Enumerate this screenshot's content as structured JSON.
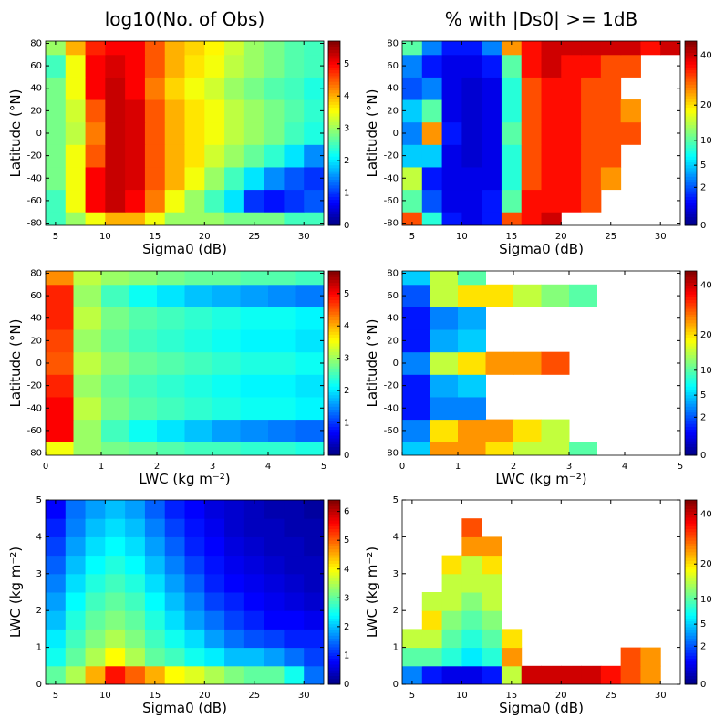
{
  "chart_data": [
    {
      "type": "heatmap",
      "title": "log10(No. of Obs)",
      "xlabel": "Sigma0 (dB)",
      "ylabel": "Latitude (°N)",
      "x": [
        5,
        7,
        9,
        11,
        13,
        15,
        17,
        19,
        21,
        23,
        25,
        27,
        29,
        31
      ],
      "y": [
        -80,
        -60,
        -40,
        -20,
        0,
        20,
        40,
        60,
        80
      ],
      "xlim": [
        4,
        32
      ],
      "ylim": [
        -82,
        82
      ],
      "xticks": [
        5,
        10,
        15,
        20,
        25,
        30
      ],
      "yticks": [
        -80,
        -60,
        -40,
        -20,
        0,
        20,
        40,
        60,
        80
      ],
      "clim": [
        0,
        5.7
      ],
      "cticks": [
        0,
        1,
        2,
        3,
        4,
        5
      ],
      "colormap": "jet",
      "z": [
        [
          2.5,
          3,
          3.5,
          4,
          4,
          3.5,
          3,
          3,
          3,
          2.8,
          2.8,
          2.8,
          2.5,
          2.5
        ],
        [
          2.5,
          3.5,
          5,
          5.3,
          5,
          4.3,
          3.5,
          3,
          2.5,
          2,
          1,
          0.8,
          1,
          1.2
        ],
        [
          2.8,
          3.5,
          5,
          5.3,
          5.2,
          4.5,
          4,
          3.5,
          3,
          2.5,
          2,
          1.5,
          1.2,
          1
        ],
        [
          2.8,
          3.5,
          4.5,
          5.3,
          5.2,
          4.5,
          4,
          3.7,
          3.3,
          3,
          2.7,
          2.4,
          2,
          1.5
        ],
        [
          2.8,
          3.2,
          4.3,
          5.3,
          5.2,
          4.5,
          4,
          3.7,
          3.5,
          3.2,
          3,
          2.8,
          2.5,
          2.3
        ],
        [
          2.8,
          3.3,
          4.5,
          5.3,
          5.2,
          4.5,
          4,
          3.7,
          3.5,
          3.2,
          3,
          2.8,
          2.6,
          2.4
        ],
        [
          2.8,
          3.5,
          5,
          5.3,
          5,
          4.3,
          3.8,
          3.5,
          3.3,
          3,
          2.8,
          2.6,
          2.5,
          2.3
        ],
        [
          2.5,
          3.5,
          5,
          5.2,
          5,
          4.5,
          4,
          3.7,
          3.5,
          3.2,
          3,
          2.8,
          2.6,
          2.5
        ],
        [
          3,
          4,
          4.8,
          5,
          5,
          4.5,
          4,
          3.8,
          3.6,
          3.3,
          3,
          2.8,
          2.6,
          2.5
        ]
      ]
    },
    {
      "type": "heatmap",
      "title": "% with |Ds0| >= 1dB",
      "xlabel": "Sigma0 (dB)",
      "ylabel": "Latitude (°N)",
      "x": [
        5,
        7,
        9,
        11,
        13,
        15,
        17,
        19,
        21,
        23,
        25,
        27,
        29,
        31
      ],
      "y": [
        -80,
        -60,
        -40,
        -20,
        0,
        20,
        40,
        60,
        80
      ],
      "xlim": [
        4,
        32
      ],
      "ylim": [
        -82,
        82
      ],
      "xticks": [
        5,
        10,
        15,
        20,
        25,
        30
      ],
      "yticks": [
        -80,
        -60,
        -40,
        -20,
        0,
        20,
        40,
        60,
        80
      ],
      "clim": [
        0,
        47
      ],
      "cscale": "sqrt",
      "cticks": [
        0,
        2,
        5,
        10,
        20,
        40
      ],
      "colormap": "jet",
      "z": [
        [
          30,
          8,
          1,
          0.5,
          1,
          30,
          35,
          40,
          null,
          null,
          null,
          null,
          null,
          null
        ],
        [
          10,
          2,
          0.5,
          0.5,
          1,
          10,
          35,
          35,
          35,
          30,
          null,
          null,
          null,
          null
        ],
        [
          15,
          1,
          0.5,
          0.5,
          0.5,
          8,
          30,
          35,
          35,
          30,
          25,
          null,
          null,
          null
        ],
        [
          5,
          5,
          0.5,
          0.3,
          0.5,
          8,
          30,
          35,
          35,
          30,
          30,
          null,
          null,
          null
        ],
        [
          3,
          25,
          1,
          0.3,
          0.5,
          10,
          30,
          35,
          35,
          30,
          30,
          30,
          null,
          null
        ],
        [
          5,
          10,
          0.5,
          0.3,
          0.5,
          8,
          30,
          35,
          35,
          30,
          30,
          25,
          null,
          null
        ],
        [
          2,
          3,
          0.5,
          0.3,
          0.5,
          8,
          30,
          35,
          35,
          30,
          30,
          null,
          null,
          null
        ],
        [
          3,
          1,
          0.5,
          0.5,
          1,
          10,
          35,
          40,
          35,
          35,
          30,
          30,
          null,
          null
        ],
        [
          10,
          3,
          1,
          1,
          3,
          25,
          35,
          40,
          40,
          40,
          40,
          40,
          35,
          40
        ]
      ]
    },
    {
      "type": "heatmap",
      "xlabel": "LWC (kg m⁻²)",
      "ylabel": "Latitude (°N)",
      "x": [
        0.25,
        0.75,
        1.25,
        1.75,
        2.25,
        2.75,
        3.25,
        3.75,
        4.25,
        4.75
      ],
      "y": [
        -80,
        -60,
        -40,
        -20,
        0,
        20,
        40,
        60,
        80
      ],
      "xlim": [
        0,
        5
      ],
      "ylim": [
        -82,
        82
      ],
      "xticks": [
        0,
        1,
        2,
        3,
        4,
        5
      ],
      "yticks": [
        -80,
        -60,
        -40,
        -20,
        0,
        20,
        40,
        60,
        80
      ],
      "clim": [
        0,
        5.7
      ],
      "cticks": [
        0,
        1,
        2,
        3,
        4,
        5
      ],
      "colormap": "jet",
      "z": [
        [
          3.5,
          3,
          2.8,
          2.7,
          2.6,
          2.5,
          2.5,
          2.4,
          2.4,
          2.3
        ],
        [
          5,
          3,
          2.5,
          2.2,
          2,
          1.8,
          1.6,
          1.5,
          1.4,
          1.3
        ],
        [
          5,
          3.2,
          2.8,
          2.6,
          2.5,
          2.4,
          2.3,
          2.2,
          2.2,
          2.1
        ],
        [
          4.8,
          3,
          2.7,
          2.5,
          2.4,
          2.3,
          2.2,
          2.1,
          2.1,
          2
        ],
        [
          4.5,
          3.2,
          2.9,
          2.7,
          2.6,
          2.5,
          2.4,
          2.3,
          2.3,
          2.2
        ],
        [
          4.6,
          3,
          2.7,
          2.5,
          2.4,
          2.3,
          2.2,
          2.1,
          2.1,
          2
        ],
        [
          4.8,
          3.2,
          2.8,
          2.6,
          2.5,
          2.4,
          2.3,
          2.2,
          2.2,
          2.1
        ],
        [
          4.8,
          3,
          2.5,
          2.2,
          2,
          1.8,
          1.7,
          1.6,
          1.5,
          1.4
        ],
        [
          4.2,
          3.2,
          3,
          2.9,
          2.8,
          2.7,
          2.7,
          2.6,
          2.6,
          2.5
        ]
      ]
    },
    {
      "type": "heatmap",
      "xlabel": "LWC (kg m⁻²)",
      "ylabel": "Latitude (°N)",
      "x": [
        0.25,
        0.75,
        1.25,
        1.75,
        2.25,
        2.75,
        3.25,
        3.75,
        4.25,
        4.75
      ],
      "y": [
        -80,
        -60,
        -40,
        -20,
        0,
        20,
        40,
        60,
        80
      ],
      "xlim": [
        0,
        5
      ],
      "ylim": [
        -82,
        82
      ],
      "xticks": [
        0,
        1,
        2,
        3,
        4,
        5
      ],
      "yticks": [
        -80,
        -60,
        -40,
        -20,
        0,
        20,
        40,
        60,
        80
      ],
      "clim": [
        0,
        47
      ],
      "cscale": "sqrt",
      "cticks": [
        0,
        2,
        5,
        10,
        20,
        40
      ],
      "colormap": "jet",
      "z": [
        [
          5,
          25,
          25,
          20,
          15,
          15,
          10,
          null,
          null,
          null
        ],
        [
          3,
          20,
          25,
          25,
          20,
          15,
          null,
          null,
          null,
          null
        ],
        [
          1,
          3,
          3,
          null,
          null,
          null,
          null,
          null,
          null,
          null
        ],
        [
          1,
          4,
          5,
          null,
          null,
          null,
          null,
          null,
          null,
          null
        ],
        [
          3,
          15,
          20,
          25,
          25,
          30,
          null,
          null,
          null,
          null
        ],
        [
          1,
          4,
          5,
          null,
          null,
          null,
          null,
          null,
          null,
          null
        ],
        [
          1,
          3,
          4,
          null,
          null,
          null,
          null,
          null,
          null,
          null
        ],
        [
          2,
          15,
          20,
          20,
          15,
          12,
          10,
          null,
          null,
          null
        ],
        [
          5,
          15,
          10,
          null,
          null,
          null,
          null,
          null,
          null,
          null
        ]
      ]
    },
    {
      "type": "heatmap",
      "xlabel": "Sigma0 (dB)",
      "ylabel": "LWC (kg m⁻²)",
      "x": [
        5,
        7,
        9,
        11,
        13,
        15,
        17,
        19,
        21,
        23,
        25,
        27,
        29,
        31
      ],
      "y": [
        0.25,
        0.75,
        1.25,
        1.75,
        2.25,
        2.75,
        3.25,
        3.75,
        4.25,
        4.75
      ],
      "xlim": [
        4,
        32
      ],
      "ylim": [
        0,
        5
      ],
      "xticks": [
        5,
        10,
        15,
        20,
        25,
        30
      ],
      "yticks": [
        0,
        1,
        2,
        3,
        4,
        5
      ],
      "clim": [
        0,
        6.4
      ],
      "cticks": [
        0,
        1,
        2,
        3,
        4,
        5,
        6
      ],
      "colormap": "jet",
      "z": [
        [
          3,
          3.5,
          4.5,
          5.5,
          5,
          4.5,
          4,
          3.8,
          3.5,
          3.2,
          3,
          3,
          2.5,
          1.5
        ],
        [
          2.5,
          3,
          3.5,
          4,
          3.5,
          3,
          2.8,
          2.5,
          2.3,
          2,
          2,
          1.8,
          1.5,
          1.2
        ],
        [
          2.3,
          2.8,
          3.2,
          3.5,
          3.2,
          2.8,
          2.5,
          2.2,
          1.8,
          1.5,
          1.3,
          1.2,
          1,
          1
        ],
        [
          2,
          2.6,
          3,
          3.2,
          3,
          2.6,
          2.2,
          1.8,
          1.5,
          1.2,
          1,
          0.8,
          0.8,
          0.7
        ],
        [
          1.8,
          2.4,
          2.8,
          3,
          2.8,
          2.4,
          2,
          1.6,
          1.2,
          1,
          0.8,
          0.7,
          0.6,
          0.5
        ],
        [
          1.6,
          2.2,
          2.6,
          2.8,
          2.6,
          2.2,
          1.8,
          1.4,
          1,
          0.8,
          0.7,
          0.6,
          0.5,
          0.4
        ],
        [
          1.4,
          2,
          2.4,
          2.6,
          2.4,
          2,
          1.6,
          1.2,
          0.9,
          0.7,
          0.6,
          0.5,
          0.4,
          0.4
        ],
        [
          1.2,
          1.8,
          2.2,
          2.4,
          2.2,
          1.8,
          1.4,
          1,
          0.8,
          0.6,
          0.5,
          0.4,
          0.4,
          0.3
        ],
        [
          1,
          1.6,
          2,
          2.2,
          2,
          1.6,
          1.2,
          0.9,
          0.7,
          0.5,
          0.4,
          0.4,
          0.3,
          0.3
        ],
        [
          0.8,
          1.5,
          1.8,
          2,
          1.8,
          1.4,
          1,
          0.8,
          0.6,
          0.5,
          0.4,
          0.3,
          0.3,
          0.2
        ]
      ]
    },
    {
      "type": "heatmap",
      "xlabel": "Sigma0 (dB)",
      "ylabel": "LWC (kg m⁻²)",
      "x": [
        5,
        7,
        9,
        11,
        13,
        15,
        17,
        19,
        21,
        23,
        25,
        27,
        29,
        31
      ],
      "y": [
        0.25,
        0.75,
        1.25,
        1.75,
        2.25,
        2.75,
        3.25,
        3.75,
        4.25,
        4.75
      ],
      "xlim": [
        4,
        32
      ],
      "ylim": [
        0,
        5
      ],
      "xticks": [
        5,
        10,
        15,
        20,
        25,
        30
      ],
      "yticks": [
        0,
        1,
        2,
        3,
        4,
        5
      ],
      "clim": [
        0,
        47
      ],
      "cscale": "sqrt",
      "cticks": [
        0,
        2,
        5,
        10,
        20,
        40
      ],
      "colormap": "jet",
      "z": [
        [
          3,
          1,
          0.5,
          0.5,
          1,
          15,
          40,
          40,
          40,
          40,
          35,
          30,
          25,
          null
        ],
        [
          10,
          10,
          8,
          6,
          8,
          25,
          null,
          null,
          null,
          null,
          null,
          30,
          25,
          null
        ],
        [
          15,
          15,
          10,
          8,
          10,
          20,
          null,
          null,
          null,
          null,
          null,
          null,
          null,
          null
        ],
        [
          null,
          20,
          12,
          10,
          12,
          null,
          null,
          null,
          null,
          null,
          null,
          null,
          null,
          null
        ],
        [
          null,
          15,
          15,
          12,
          15,
          null,
          null,
          null,
          null,
          null,
          null,
          null,
          null,
          null
        ],
        [
          null,
          null,
          15,
          15,
          15,
          null,
          null,
          null,
          null,
          null,
          null,
          null,
          null,
          null
        ],
        [
          null,
          null,
          20,
          15,
          20,
          null,
          null,
          null,
          null,
          null,
          null,
          null,
          null,
          null
        ],
        [
          null,
          null,
          null,
          25,
          25,
          null,
          null,
          null,
          null,
          null,
          null,
          null,
          null,
          null
        ],
        [
          null,
          null,
          null,
          30,
          null,
          null,
          null,
          null,
          null,
          null,
          null,
          null,
          null,
          null
        ],
        [
          null,
          null,
          null,
          null,
          null,
          null,
          null,
          null,
          null,
          null,
          null,
          null,
          null,
          null
        ]
      ]
    }
  ]
}
